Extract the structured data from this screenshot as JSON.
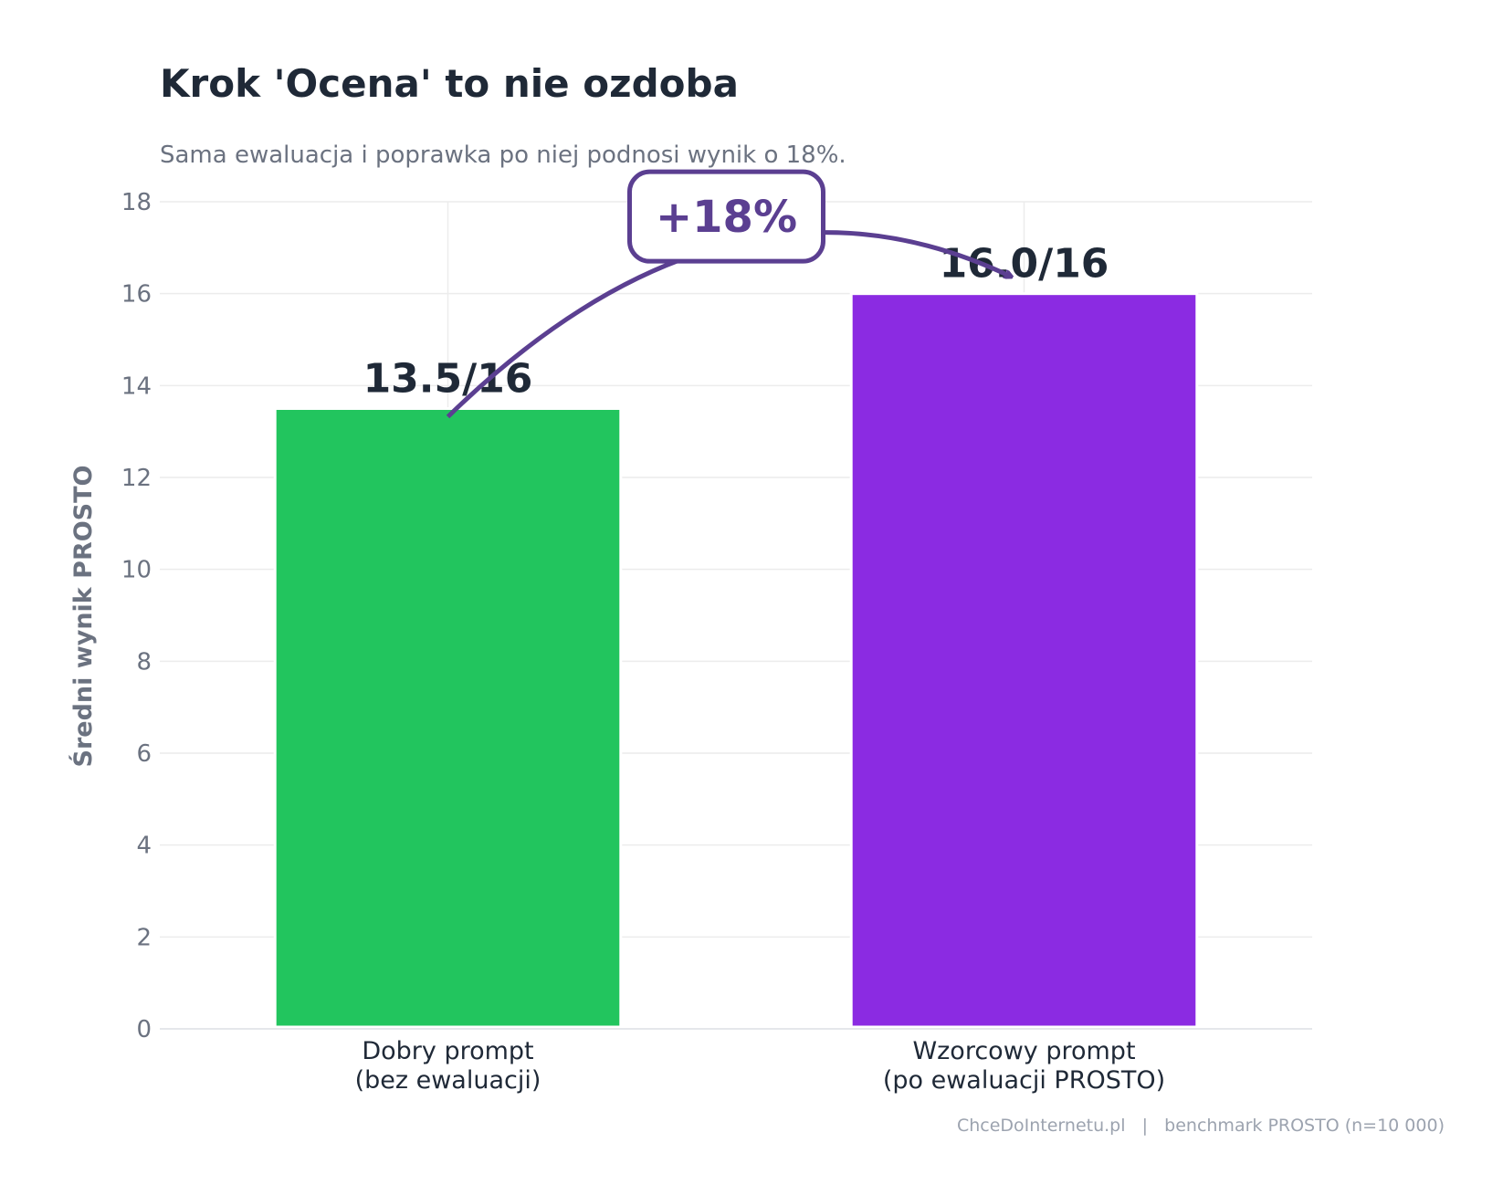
{
  "chart_data": {
    "type": "bar",
    "title": "Krok 'Ocena' to nie ozdoba",
    "subtitle": "Sama ewaluacja i poprawka po niej podnosi wynik o 18%.",
    "ylabel": "Średni wynik PROSTO",
    "xlabel": "",
    "ylim": [
      0,
      18
    ],
    "yticks": [
      0,
      2,
      4,
      6,
      8,
      10,
      12,
      14,
      16,
      18
    ],
    "grid": true,
    "categories": [
      [
        "Dobry prompt",
        "(bez ewaluacji)"
      ],
      [
        "Wzorcowy prompt",
        "(po ewaluacji PROSTO)"
      ]
    ],
    "values": [
      13.5,
      16.0
    ],
    "data_labels": [
      "13.5/16",
      "16.0/16"
    ],
    "colors": [
      "#22c55e",
      "#8b2be2"
    ],
    "annotation": {
      "text": "+18%",
      "from": 0,
      "to": 1,
      "color": "#5b3f91"
    },
    "footer": "ChceDoInternetu.pl   |   benchmark PROSTO (n=10 000)"
  }
}
